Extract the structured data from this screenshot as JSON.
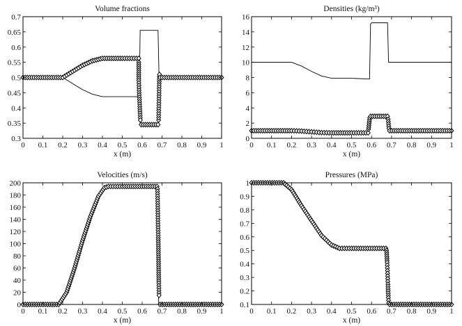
{
  "chart_data": [
    {
      "type": "line",
      "title": "Volume fractions",
      "xlabel": "x (m)",
      "ylabel": "",
      "xlim": [
        0,
        1
      ],
      "ylim": [
        0.3,
        0.7
      ],
      "xticks": [
        "0",
        "0.1",
        "0.2",
        "0.3",
        "0.4",
        "0.5",
        "0.6",
        "0.7",
        "0.8",
        "0.9",
        "1"
      ],
      "yticks": [
        "0.3",
        "0.35",
        "0.4",
        "0.45",
        "0.5",
        "0.55",
        "0.6",
        "0.65",
        "0.7"
      ],
      "grid": false,
      "series": [
        {
          "style": "line",
          "x": [
            0,
            0.2,
            0.25,
            0.3,
            0.35,
            0.4,
            0.5,
            0.585,
            0.59,
            0.595,
            0.68,
            0.685,
            0.69,
            1
          ],
          "y": [
            0.5,
            0.5,
            0.48,
            0.46,
            0.445,
            0.437,
            0.437,
            0.437,
            0.655,
            0.655,
            0.655,
            0.5,
            0.5,
            0.5
          ]
        },
        {
          "style": "line",
          "x": [
            0,
            0.2,
            0.25,
            0.3,
            0.35,
            0.4,
            0.5,
            0.585,
            0.59,
            0.595,
            0.68,
            0.685,
            0.69,
            1
          ],
          "y": [
            0.5,
            0.5,
            0.52,
            0.54,
            0.555,
            0.563,
            0.563,
            0.563,
            0.345,
            0.345,
            0.345,
            0.5,
            0.5,
            0.5
          ]
        },
        {
          "style": "markers",
          "x": [
            0,
            0.2,
            0.25,
            0.3,
            0.35,
            0.4,
            0.5,
            0.583
          ],
          "y": [
            0.5,
            0.5,
            0.52,
            0.54,
            0.555,
            0.563,
            0.563,
            0.563
          ]
        },
        {
          "style": "markers",
          "x": [
            0.583,
            0.583,
            0.583,
            0.583,
            0.585,
            0.587,
            0.589,
            0.591
          ],
          "y": [
            0.55,
            0.53,
            0.51,
            0.49,
            0.45,
            0.42,
            0.39,
            0.36
          ]
        },
        {
          "style": "markers",
          "x": [
            0.595,
            0.68
          ],
          "y": [
            0.345,
            0.345
          ]
        },
        {
          "style": "markers",
          "x": [
            0.683,
            0.684,
            0.685,
            0.686,
            0.687
          ],
          "y": [
            0.36,
            0.4,
            0.44,
            0.48,
            0.51
          ]
        },
        {
          "style": "markers",
          "x": [
            0.69,
            1
          ],
          "y": [
            0.5,
            0.5
          ]
        }
      ]
    },
    {
      "type": "line",
      "title": "Densities (kg/m³)",
      "xlabel": "x (m)",
      "ylabel": "",
      "xlim": [
        0,
        1
      ],
      "ylim": [
        0,
        16
      ],
      "xticks": [
        "0",
        "0.1",
        "0.2",
        "0.3",
        "0.4",
        "0.5",
        "0.6",
        "0.7",
        "0.8",
        "0.9",
        "1"
      ],
      "yticks": [
        "0",
        "2",
        "4",
        "6",
        "8",
        "10",
        "12",
        "14",
        "16"
      ],
      "grid": false,
      "series": [
        {
          "style": "line",
          "x": [
            0,
            0.2,
            0.25,
            0.3,
            0.35,
            0.4,
            0.5,
            0.585,
            0.59,
            0.595,
            0.6,
            0.68,
            0.685,
            0.69,
            1
          ],
          "y": [
            10,
            10,
            9.5,
            8.8,
            8.2,
            7.9,
            7.9,
            7.8,
            7.8,
            15.0,
            15.2,
            15.2,
            10,
            10,
            10
          ]
        },
        {
          "style": "markers",
          "x": [
            0,
            0.2,
            0.25,
            0.3,
            0.35,
            0.4,
            0.5,
            0.583
          ],
          "y": [
            1,
            1,
            0.95,
            0.85,
            0.75,
            0.72,
            0.72,
            0.72
          ]
        },
        {
          "style": "markers",
          "x": [
            0.585,
            0.587,
            0.589,
            0.591
          ],
          "y": [
            1.2,
            1.7,
            2.2,
            2.7
          ]
        },
        {
          "style": "markers",
          "x": [
            0.595,
            0.68
          ],
          "y": [
            2.9,
            2.9
          ]
        },
        {
          "style": "markers",
          "x": [
            0.683,
            0.685,
            0.687
          ],
          "y": [
            2.5,
            1.9,
            1.3
          ]
        },
        {
          "style": "markers",
          "x": [
            0.69,
            1
          ],
          "y": [
            1,
            1
          ]
        }
      ]
    },
    {
      "type": "line",
      "title": "Velocities (m/s)",
      "xlabel": "x (m)",
      "ylabel": "",
      "xlim": [
        0,
        1
      ],
      "ylim": [
        0,
        200
      ],
      "xticks": [
        "0",
        "0.1",
        "0.2",
        "0.3",
        "0.4",
        "0.5",
        "0.6",
        "0.7",
        "0.8",
        "0.9",
        "1"
      ],
      "yticks": [
        "0",
        "20",
        "40",
        "60",
        "80",
        "100",
        "120",
        "140",
        "160",
        "180",
        "200"
      ],
      "grid": false,
      "series": [
        {
          "style": "line",
          "x": [
            0,
            0.18,
            0.22,
            0.26,
            0.3,
            0.34,
            0.38,
            0.41,
            0.43,
            0.5,
            0.68,
            0.683,
            0.69,
            1
          ],
          "y": [
            0,
            0,
            20,
            60,
            105,
            145,
            178,
            192,
            194,
            194,
            194,
            0,
            0,
            0
          ]
        },
        {
          "style": "markers",
          "x": [
            0,
            0.18,
            0.22,
            0.26,
            0.3,
            0.34,
            0.38,
            0.41,
            0.43,
            0.5,
            0.675
          ],
          "y": [
            0,
            0,
            20,
            60,
            105,
            145,
            178,
            192,
            194,
            194,
            194
          ]
        },
        {
          "style": "markers",
          "x": [
            0.677,
            0.678,
            0.679,
            0.68,
            0.681,
            0.682,
            0.683,
            0.684,
            0.685
          ],
          "y": [
            190,
            170,
            150,
            130,
            110,
            85,
            60,
            35,
            15
          ]
        },
        {
          "style": "markers",
          "x": [
            0.69,
            1
          ],
          "y": [
            0,
            0
          ]
        }
      ]
    },
    {
      "type": "line",
      "title": "Pressures (MPa)",
      "xlabel": "x (m)",
      "ylabel": "",
      "xlim": [
        0,
        1
      ],
      "ylim": [
        0.1,
        1.0
      ],
      "xticks": [
        "0",
        "0.1",
        "0.2",
        "0.3",
        "0.4",
        "0.5",
        "0.6",
        "0.7",
        "0.8",
        "0.9",
        "1"
      ],
      "yticks": [
        "0.1",
        "0.2",
        "0.3",
        "0.4",
        "0.5",
        "0.6",
        "0.7",
        "0.8",
        "0.9",
        "1"
      ],
      "grid": false,
      "series": [
        {
          "style": "line",
          "x": [
            0,
            0.16,
            0.2,
            0.25,
            0.3,
            0.35,
            0.4,
            0.44,
            0.5,
            0.675,
            0.685,
            0.69,
            1
          ],
          "y": [
            1.0,
            1.0,
            0.95,
            0.83,
            0.72,
            0.61,
            0.54,
            0.515,
            0.515,
            0.515,
            0.1,
            0.1,
            0.1
          ]
        },
        {
          "style": "markers",
          "x": [
            0,
            0.16,
            0.2,
            0.25,
            0.3,
            0.35,
            0.4,
            0.44,
            0.5,
            0.672
          ],
          "y": [
            1.0,
            1.0,
            0.95,
            0.83,
            0.72,
            0.61,
            0.54,
            0.515,
            0.515,
            0.515
          ]
        },
        {
          "style": "markers",
          "x": [
            0.675,
            0.676,
            0.677,
            0.678,
            0.679,
            0.68,
            0.681,
            0.682,
            0.683,
            0.684,
            0.686
          ],
          "y": [
            0.5,
            0.47,
            0.44,
            0.41,
            0.37,
            0.33,
            0.29,
            0.25,
            0.2,
            0.15,
            0.11
          ]
        },
        {
          "style": "markers",
          "x": [
            0.69,
            1
          ],
          "y": [
            0.1,
            0.1
          ]
        }
      ]
    }
  ]
}
